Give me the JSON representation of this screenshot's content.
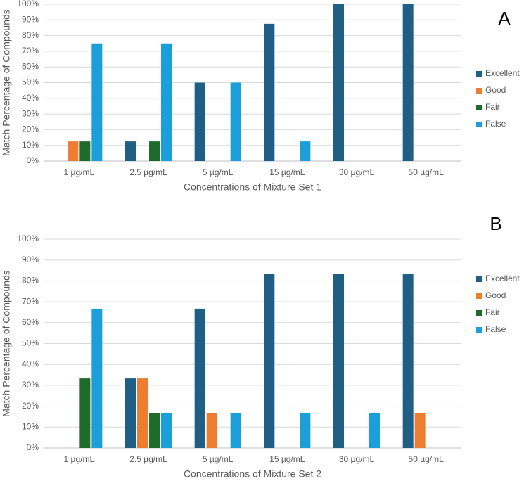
{
  "chart_data": [
    {
      "type": "bar",
      "annotation": "A",
      "x_label": "Concentrations of Mixture Set 1",
      "y_label": "Match Percentage of Compounds",
      "categories": [
        "1 µg/mL",
        "2.5 µg/mL",
        "5 µg/mL",
        "15 µg/mL",
        "30 µg/mL",
        "50 µg/mL"
      ],
      "series": [
        {
          "name": "Excellent",
          "color": "#1f5f86",
          "values": [
            0,
            12.5,
            50,
            87.5,
            100,
            100
          ]
        },
        {
          "name": "Good",
          "color": "#ed7d31",
          "values": [
            12.5,
            0,
            0,
            0,
            0,
            0
          ]
        },
        {
          "name": "Fair",
          "color": "#1e6b2b",
          "values": [
            12.5,
            12.5,
            0,
            0,
            0,
            0
          ]
        },
        {
          "name": "False",
          "color": "#1a9fd8",
          "values": [
            75,
            75,
            50,
            12.5,
            0,
            0
          ]
        }
      ],
      "ylim": [
        0,
        100
      ],
      "yticks": [
        {
          "value": 0,
          "label": "0%"
        },
        {
          "value": 10,
          "label": "10%"
        },
        {
          "value": 20,
          "label": "20%"
        },
        {
          "value": 30,
          "label": "30%"
        },
        {
          "value": 40,
          "label": "40%"
        },
        {
          "value": 50,
          "label": "50%"
        },
        {
          "value": 60,
          "label": "60%"
        },
        {
          "value": 70,
          "label": "70%"
        },
        {
          "value": 80,
          "label": "80%"
        },
        {
          "value": 90,
          "label": "90%"
        },
        {
          "value": 100,
          "label": "100%"
        }
      ],
      "grid": true,
      "legend": "right"
    },
    {
      "type": "bar",
      "annotation": "B",
      "x_label": "Concentrations of Mixture Set 2",
      "y_label": "Match Percentage of Compounds",
      "categories": [
        "1 µg/mL",
        "2.5 µg/mL",
        "5 µg/mL",
        "15 µg/mL",
        "30 µg/mL",
        "50 µg/mL"
      ],
      "series": [
        {
          "name": "Excellent",
          "color": "#1f5f86",
          "values": [
            0,
            33.3,
            66.7,
            83.3,
            83.3,
            83.3
          ]
        },
        {
          "name": "Good",
          "color": "#ed7d31",
          "values": [
            0,
            33.3,
            16.7,
            0,
            0,
            16.7
          ]
        },
        {
          "name": "Fair",
          "color": "#1e6b2b",
          "values": [
            33.3,
            16.7,
            0,
            0,
            0,
            0
          ]
        },
        {
          "name": "False",
          "color": "#1a9fd8",
          "values": [
            66.7,
            16.7,
            16.7,
            16.7,
            16.7,
            0
          ]
        }
      ],
      "ylim": [
        0,
        100
      ],
      "yticks": [
        {
          "value": 0,
          "label": "0%"
        },
        {
          "value": 10,
          "label": "10%"
        },
        {
          "value": 20,
          "label": "20%"
        },
        {
          "value": 30,
          "label": "30%"
        },
        {
          "value": 40,
          "label": "40%"
        },
        {
          "value": 50,
          "label": "50%"
        },
        {
          "value": 60,
          "label": "60%"
        },
        {
          "value": 70,
          "label": "70%"
        },
        {
          "value": 80,
          "label": "80%"
        },
        {
          "value": 90,
          "label": "90%"
        },
        {
          "value": 100,
          "label": "100%"
        }
      ],
      "grid": true,
      "legend": "right"
    }
  ]
}
